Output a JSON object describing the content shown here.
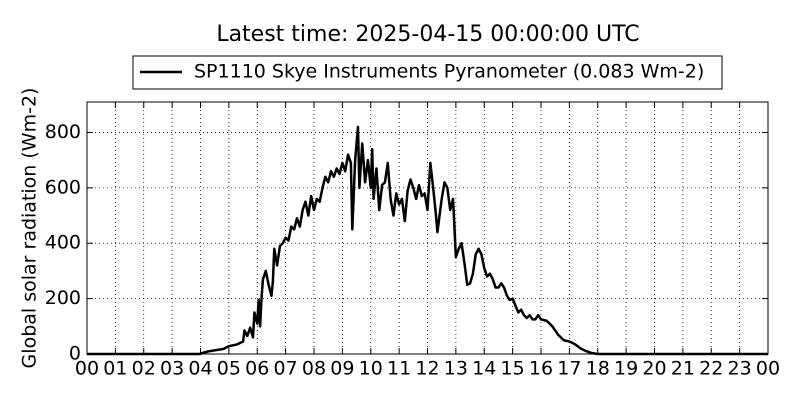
{
  "chart_data": {
    "type": "line",
    "title": "Latest time: 2025-04-15 00:00:00 UTC",
    "ylabel": "Global solar radiation (Wm-2)",
    "legend": "top",
    "grid": true,
    "xlim": [
      0,
      24
    ],
    "xticks": [
      {
        "value": 0,
        "label": "00"
      },
      {
        "value": 1,
        "label": "01"
      },
      {
        "value": 2,
        "label": "02"
      },
      {
        "value": 3,
        "label": "03"
      },
      {
        "value": 4,
        "label": "04"
      },
      {
        "value": 5,
        "label": "05"
      },
      {
        "value": 6,
        "label": "06"
      },
      {
        "value": 7,
        "label": "07"
      },
      {
        "value": 8,
        "label": "08"
      },
      {
        "value": 9,
        "label": "09"
      },
      10,
      11,
      12,
      13,
      14,
      15,
      16,
      17,
      18,
      19,
      20,
      21,
      22,
      23,
      {
        "value": 24,
        "label": "00"
      }
    ],
    "ylim": [
      0,
      910
    ],
    "yticks": [
      0,
      200,
      400,
      600,
      800
    ],
    "x": [
      0,
      4,
      4.0,
      4.3,
      4.6,
      4.8,
      5.0,
      5.3,
      5.5,
      5.55,
      5.65,
      5.75,
      5.85,
      5.9,
      6.0,
      6.05,
      6.1,
      6.15,
      6.2,
      6.3,
      6.4,
      6.5,
      6.55,
      6.6,
      6.7,
      6.8,
      6.9,
      7.0,
      7.1,
      7.2,
      7.3,
      7.4,
      7.5,
      7.6,
      7.7,
      7.8,
      7.9,
      8.0,
      8.1,
      8.2,
      8.3,
      8.4,
      8.5,
      8.6,
      8.7,
      8.8,
      8.9,
      9.0,
      9.1,
      9.2,
      9.3,
      9.35,
      9.45,
      9.55,
      9.6,
      9.7,
      9.8,
      9.9,
      10.0,
      10.05,
      10.1,
      10.2,
      10.3,
      10.4,
      10.5,
      10.6,
      10.7,
      10.8,
      10.9,
      11.0,
      11.1,
      11.2,
      11.3,
      11.4,
      11.5,
      11.6,
      11.7,
      11.8,
      11.9,
      12.0,
      12.1,
      12.2,
      12.3,
      12.35,
      12.45,
      12.5,
      12.6,
      12.7,
      12.8,
      12.9,
      13.0,
      13.1,
      13.2,
      13.3,
      13.4,
      13.5,
      13.6,
      13.7,
      13.8,
      13.9,
      14.0,
      14.1,
      14.2,
      14.3,
      14.4,
      14.5,
      14.6,
      14.7,
      14.8,
      14.9,
      15.0,
      15.1,
      15.2,
      15.3,
      15.4,
      15.5,
      15.6,
      15.7,
      15.8,
      15.9,
      16.0,
      16.2,
      16.4,
      16.6,
      16.8,
      17.0,
      17.2,
      17.4,
      17.6,
      17.8,
      18.0,
      24
    ],
    "series": [
      {
        "name": "SP1110 Skye Instruments Pyranometer (0.083 Wm-2)",
        "color": "#000000",
        "values": [
          0,
          0,
          2,
          10,
          15,
          18,
          28,
          35,
          45,
          85,
          65,
          95,
          60,
          150,
          110,
          195,
          100,
          200,
          270,
          300,
          250,
          210,
          260,
          380,
          320,
          390,
          400,
          420,
          410,
          460,
          450,
          490,
          460,
          520,
          550,
          500,
          570,
          520,
          560,
          550,
          600,
          640,
          620,
          660,
          640,
          670,
          650,
          690,
          660,
          720,
          690,
          450,
          700,
          820,
          600,
          760,
          620,
          700,
          600,
          740,
          560,
          670,
          520,
          610,
          620,
          690,
          560,
          500,
          580,
          540,
          560,
          480,
          590,
          630,
          600,
          560,
          610,
          570,
          580,
          520,
          690,
          600,
          500,
          440,
          520,
          560,
          620,
          600,
          520,
          560,
          350,
          380,
          400,
          330,
          250,
          255,
          290,
          360,
          380,
          360,
          310,
          280,
          290,
          270,
          240,
          240,
          255,
          240,
          210,
          195,
          200,
          175,
          150,
          160,
          140,
          130,
          140,
          125,
          125,
          140,
          125,
          120,
          100,
          70,
          50,
          45,
          35,
          20,
          10,
          3,
          0,
          0
        ]
      }
    ]
  }
}
